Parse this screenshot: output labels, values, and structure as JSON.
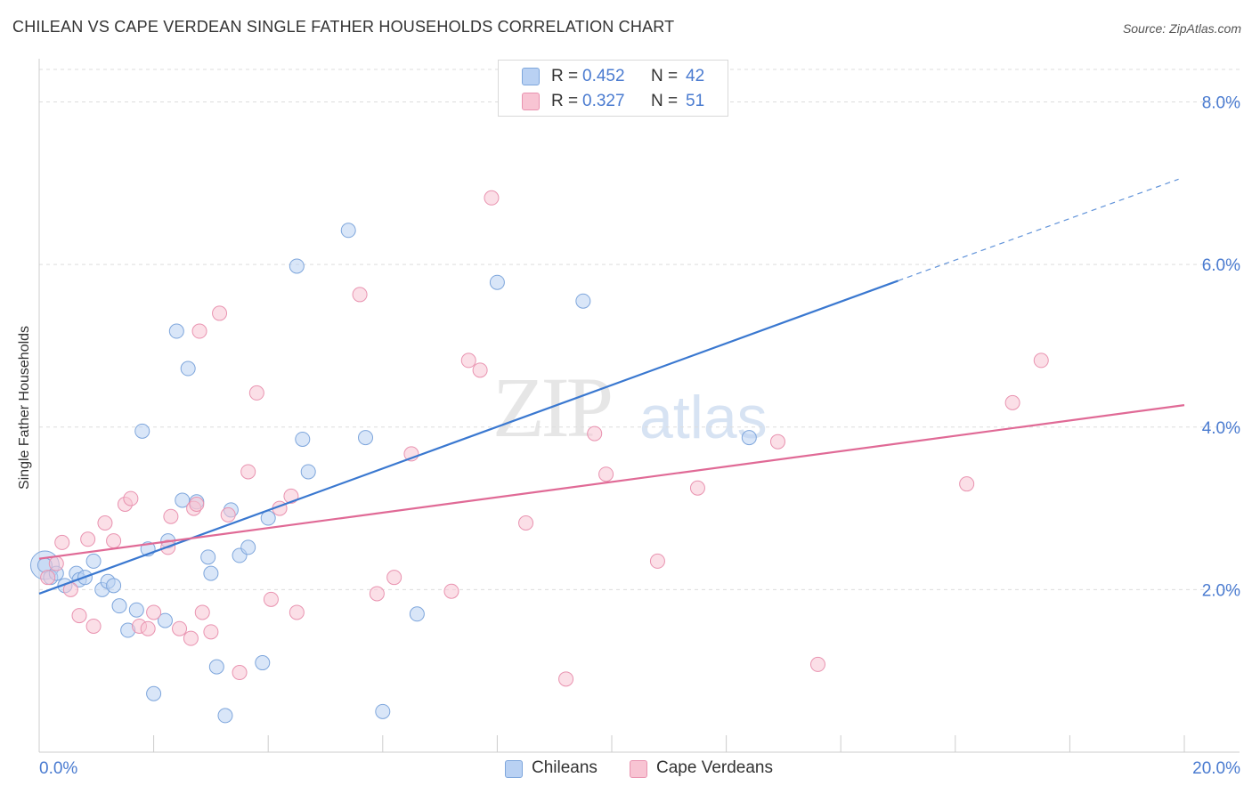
{
  "header": {
    "title": "CHILEAN VS CAPE VERDEAN SINGLE FATHER HOUSEHOLDS CORRELATION CHART",
    "source": "Source: ZipAtlas.com"
  },
  "watermark": {
    "zip": "ZIP",
    "atlas": "atlas"
  },
  "legend": {
    "rows": [
      {
        "r_label": "R =",
        "r_value": "0.452",
        "n_label": "N =",
        "n_value": "42"
      },
      {
        "r_label": "R =",
        "r_value": "0.327",
        "n_label": "N =",
        "n_value": "51"
      }
    ]
  },
  "bottom_legend": {
    "chileans": "Chileans",
    "cape_verdeans": "Cape Verdeans"
  },
  "colors": {
    "chileans_fill": "#b9d1f3",
    "chileans_stroke": "#7ea6dc",
    "chileans_line": "#3a78d0",
    "cape_fill": "#f8c4d3",
    "cape_stroke": "#e993b0",
    "cape_line": "#e06a96",
    "tick_label": "#4a7bd0",
    "grid": "#dddddd"
  },
  "chart_data": {
    "type": "scatter",
    "title": "CHILEAN VS CAPE VERDEAN SINGLE FATHER HOUSEHOLDS CORRELATION CHART",
    "xlabel": "",
    "ylabel": "Single Father Households",
    "xlim": [
      0,
      20
    ],
    "ylim": [
      0,
      8.4
    ],
    "x_tick_labels": [
      "0.0%",
      "20.0%"
    ],
    "y_ticks": [
      2,
      4,
      6,
      8
    ],
    "y_tick_labels": [
      "2.0%",
      "4.0%",
      "6.0%",
      "8.0%"
    ],
    "grid": true,
    "series": [
      {
        "name": "Chileans",
        "r": 0.452,
        "n": 42,
        "trend": {
          "x0": 0,
          "y0": 1.95,
          "x1": 15,
          "y1": 5.8,
          "dash_to_x": 19.9,
          "dash_to_y": 7.05
        },
        "points": [
          [
            0.1,
            2.3
          ],
          [
            0.2,
            2.15
          ],
          [
            0.3,
            2.2
          ],
          [
            0.45,
            2.05
          ],
          [
            0.65,
            2.2
          ],
          [
            0.7,
            2.12
          ],
          [
            0.8,
            2.15
          ],
          [
            0.95,
            2.35
          ],
          [
            1.1,
            2.0
          ],
          [
            1.2,
            2.1
          ],
          [
            1.3,
            2.05
          ],
          [
            1.4,
            1.8
          ],
          [
            1.55,
            1.5
          ],
          [
            1.7,
            1.75
          ],
          [
            1.8,
            3.95
          ],
          [
            1.9,
            2.5
          ],
          [
            2.0,
            0.72
          ],
          [
            2.2,
            1.62
          ],
          [
            2.25,
            2.6
          ],
          [
            2.4,
            5.18
          ],
          [
            2.5,
            3.1
          ],
          [
            2.6,
            4.72
          ],
          [
            2.75,
            3.08
          ],
          [
            2.95,
            2.4
          ],
          [
            3.0,
            2.2
          ],
          [
            3.1,
            1.05
          ],
          [
            3.25,
            0.45
          ],
          [
            3.35,
            2.98
          ],
          [
            3.5,
            2.42
          ],
          [
            3.65,
            2.52
          ],
          [
            3.9,
            1.1
          ],
          [
            4.0,
            2.88
          ],
          [
            4.5,
            5.98
          ],
          [
            4.6,
            3.85
          ],
          [
            4.7,
            3.45
          ],
          [
            5.4,
            6.42
          ],
          [
            5.7,
            3.87
          ],
          [
            6.0,
            0.5
          ],
          [
            6.6,
            1.7
          ],
          [
            8.0,
            5.78
          ],
          [
            9.5,
            5.55
          ],
          [
            12.4,
            3.87
          ]
        ]
      },
      {
        "name": "Cape Verdeans",
        "r": 0.327,
        "n": 51,
        "trend": {
          "x0": 0,
          "y0": 2.38,
          "x1": 20,
          "y1": 4.27
        },
        "points": [
          [
            0.15,
            2.15
          ],
          [
            0.3,
            2.32
          ],
          [
            0.4,
            2.58
          ],
          [
            0.55,
            2.0
          ],
          [
            0.7,
            1.68
          ],
          [
            0.85,
            2.62
          ],
          [
            0.95,
            1.55
          ],
          [
            1.15,
            2.82
          ],
          [
            1.3,
            2.6
          ],
          [
            1.5,
            3.05
          ],
          [
            1.6,
            3.12
          ],
          [
            1.75,
            1.55
          ],
          [
            1.9,
            1.52
          ],
          [
            2.0,
            1.72
          ],
          [
            2.25,
            2.52
          ],
          [
            2.3,
            2.9
          ],
          [
            2.45,
            1.52
          ],
          [
            2.65,
            1.4
          ],
          [
            2.7,
            3.0
          ],
          [
            2.75,
            3.05
          ],
          [
            2.8,
            5.18
          ],
          [
            2.85,
            1.72
          ],
          [
            3.0,
            1.48
          ],
          [
            3.15,
            5.4
          ],
          [
            3.3,
            2.92
          ],
          [
            3.5,
            0.98
          ],
          [
            3.65,
            3.45
          ],
          [
            3.8,
            4.42
          ],
          [
            4.05,
            1.88
          ],
          [
            4.2,
            3.0
          ],
          [
            4.4,
            3.15
          ],
          [
            4.5,
            1.72
          ],
          [
            5.6,
            5.63
          ],
          [
            5.9,
            1.95
          ],
          [
            6.2,
            2.15
          ],
          [
            6.5,
            3.67
          ],
          [
            7.2,
            1.98
          ],
          [
            7.5,
            4.82
          ],
          [
            7.7,
            4.7
          ],
          [
            7.9,
            6.82
          ],
          [
            8.5,
            2.82
          ],
          [
            9.2,
            0.9
          ],
          [
            9.7,
            3.92
          ],
          [
            9.9,
            3.42
          ],
          [
            10.8,
            2.35
          ],
          [
            11.5,
            3.25
          ],
          [
            12.9,
            3.82
          ],
          [
            13.6,
            1.08
          ],
          [
            16.2,
            3.3
          ],
          [
            17.0,
            4.3
          ],
          [
            17.5,
            4.82
          ]
        ]
      }
    ]
  }
}
